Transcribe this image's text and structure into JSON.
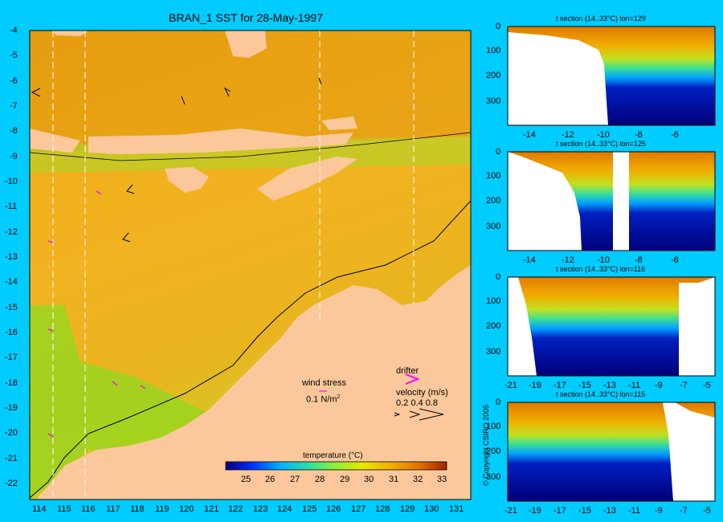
{
  "main_map": {
    "title": "BRAN_1 SST for 28-May-1997",
    "lat_ticks": [
      "-4",
      "-5",
      "-6",
      "-7",
      "-8",
      "-9",
      "-10",
      "-11",
      "-12",
      "-13",
      "-14",
      "-15",
      "-16",
      "-17",
      "-18",
      "-19",
      "-20",
      "-21",
      "-22"
    ],
    "lon_ticks": [
      "114",
      "115",
      "116",
      "117",
      "118",
      "119",
      "120",
      "121",
      "122",
      "123",
      "124",
      "125",
      "126",
      "127",
      "128",
      "129",
      "130",
      "131"
    ],
    "wind_stress_label": "wind stress",
    "wind_stress_scale": "0.1 N/m",
    "wind_stress_scale_sup": "2",
    "drifter_label": "drifter",
    "velocity_label": "velocity (m/s)",
    "velocity_scale": "0.2 0.4 0.8",
    "colorbar_title": "temperature (°C)",
    "colorbar_ticks": [
      "25",
      "26",
      "27",
      "28",
      "29",
      "30",
      "31",
      "32",
      "33"
    ],
    "colors": {
      "land": "#fcc89b",
      "background": "#00ccff",
      "drifter": "#ff00ff"
    }
  },
  "sections": [
    {
      "title": "t section (14..33°C) lon=129",
      "y_ticks": [
        "0",
        "100",
        "200",
        "300"
      ],
      "x_ticks": [
        "-14",
        "-12",
        "-10",
        "-8",
        "-6"
      ]
    },
    {
      "title": "t section (14..33°C) lon=125",
      "y_ticks": [
        "0",
        "100",
        "200",
        "300"
      ],
      "x_ticks": [
        "-14",
        "-12",
        "-10",
        "-8",
        "-6"
      ]
    },
    {
      "title": "t section (14..33°C) lon=116",
      "y_ticks": [
        "0",
        "100",
        "200",
        "300"
      ],
      "x_ticks": [
        "-21",
        "-19",
        "-17",
        "-15",
        "-13",
        "-11",
        "-9",
        "-7",
        "-5"
      ]
    },
    {
      "title": "t section (14..33°C) lon=115",
      "y_ticks": [
        "0",
        "100",
        "200",
        "300"
      ],
      "x_ticks": [
        "-21",
        "-19",
        "-17",
        "-15",
        "-13",
        "-11",
        "-9",
        "-7",
        "-5"
      ]
    }
  ],
  "copyright": "© Copyright CSIRO 2005"
}
